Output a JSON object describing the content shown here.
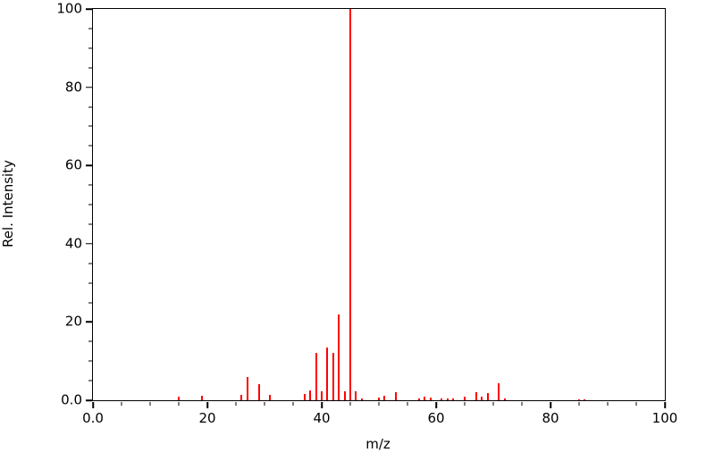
{
  "figure": {
    "background": "#ffffff"
  },
  "chart_data": {
    "type": "bar",
    "subtype": "mass-spectrum-impulse",
    "title": "",
    "xlabel": "m/z",
    "ylabel": "Rel. Intensity",
    "xlim": [
      0,
      100
    ],
    "ylim": [
      0,
      100
    ],
    "grid": false,
    "legend": "none",
    "bar_color": "#ff0000",
    "axis_color": "#000000",
    "x_major_ticks": [
      0,
      20,
      40,
      60,
      80,
      100
    ],
    "x_tick_labels": [
      "0.0",
      "20",
      "40",
      "60",
      "80",
      "100"
    ],
    "x_minor_step": 5,
    "y_major_ticks": [
      0,
      20,
      40,
      60,
      80,
      100
    ],
    "y_tick_labels": [
      "0.0",
      "20",
      "40",
      "60",
      "80",
      "100"
    ],
    "y_minor_step": 5,
    "peaks": [
      {
        "mz": 15,
        "intensity": 1.0
      },
      {
        "mz": 19,
        "intensity": 1.2
      },
      {
        "mz": 26,
        "intensity": 1.3
      },
      {
        "mz": 27,
        "intensity": 6.0
      },
      {
        "mz": 29,
        "intensity": 4.0
      },
      {
        "mz": 31,
        "intensity": 1.4
      },
      {
        "mz": 37,
        "intensity": 1.5
      },
      {
        "mz": 38,
        "intensity": 2.5
      },
      {
        "mz": 39,
        "intensity": 12.0
      },
      {
        "mz": 40,
        "intensity": 2.2
      },
      {
        "mz": 41,
        "intensity": 13.5
      },
      {
        "mz": 42,
        "intensity": 12.0
      },
      {
        "mz": 43,
        "intensity": 22.0
      },
      {
        "mz": 44,
        "intensity": 2.2
      },
      {
        "mz": 45,
        "intensity": 100.0
      },
      {
        "mz": 46,
        "intensity": 2.2
      },
      {
        "mz": 47,
        "intensity": 0.5
      },
      {
        "mz": 50,
        "intensity": 0.8
      },
      {
        "mz": 51,
        "intensity": 1.2
      },
      {
        "mz": 53,
        "intensity": 2.1
      },
      {
        "mz": 57,
        "intensity": 0.5
      },
      {
        "mz": 58,
        "intensity": 0.9
      },
      {
        "mz": 59,
        "intensity": 0.7
      },
      {
        "mz": 61,
        "intensity": 0.5
      },
      {
        "mz": 62,
        "intensity": 0.4
      },
      {
        "mz": 63,
        "intensity": 0.4
      },
      {
        "mz": 65,
        "intensity": 1.0
      },
      {
        "mz": 67,
        "intensity": 2.0
      },
      {
        "mz": 68,
        "intensity": 0.9
      },
      {
        "mz": 69,
        "intensity": 1.8
      },
      {
        "mz": 71,
        "intensity": 4.3
      },
      {
        "mz": 72,
        "intensity": 0.4
      },
      {
        "mz": 85,
        "intensity": 0.3
      },
      {
        "mz": 86,
        "intensity": 0.3
      }
    ]
  }
}
